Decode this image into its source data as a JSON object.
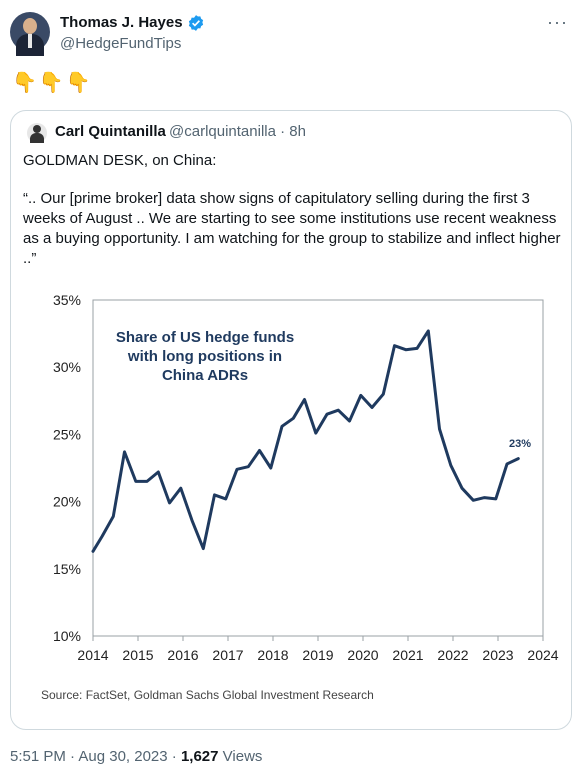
{
  "author": {
    "name": "Thomas J. Hayes",
    "handle": "@HedgeFundTips"
  },
  "tweet_text": "👇👇👇",
  "quoted": {
    "name": "Carl Quintanilla",
    "handle": "@carlquintanilla",
    "time": "· 8h",
    "line1": "GOLDMAN DESK, on China:",
    "line2": "“.. Our [prime broker] data show signs of capitulatory selling during the first 3 weeks of August .. We are starting to see some institutions use recent weakness as a buying opportunity. I am watching for the group to stabilize and inflect higher ..”"
  },
  "chart_data": {
    "type": "line",
    "title": "Share of US hedge funds with long positions in China ADRs",
    "end_label": "23%",
    "source": "Source: FactSet, Goldman Sachs Global Investment Research",
    "xlabel": "",
    "ylabel": "",
    "xlim": [
      2014,
      2024
    ],
    "ylim": [
      10,
      35
    ],
    "x_ticks": [
      "2014",
      "2015",
      "2016",
      "2017",
      "2018",
      "2019",
      "2020",
      "2021",
      "2022",
      "2023",
      "2024"
    ],
    "y_ticks": [
      "10%",
      "15%",
      "20%",
      "25%",
      "30%",
      "35%"
    ],
    "grid": false,
    "line_color": "#1f3a5f",
    "x": [
      2014.0,
      2014.2,
      2014.45,
      2014.7,
      2014.95,
      2015.2,
      2015.45,
      2015.7,
      2015.95,
      2016.2,
      2016.45,
      2016.7,
      2016.95,
      2017.2,
      2017.45,
      2017.7,
      2017.95,
      2018.2,
      2018.45,
      2018.7,
      2018.95,
      2019.2,
      2019.45,
      2019.7,
      2019.95,
      2020.2,
      2020.45,
      2020.7,
      2020.95,
      2021.2,
      2021.45,
      2021.7,
      2021.95,
      2022.2,
      2022.45,
      2022.7,
      2022.95,
      2023.2,
      2023.45
    ],
    "values": [
      16.3,
      17.4,
      18.9,
      23.7,
      21.5,
      21.5,
      22.2,
      19.9,
      21.0,
      18.6,
      16.5,
      20.5,
      20.2,
      22.4,
      22.6,
      23.8,
      22.5,
      25.6,
      26.2,
      27.6,
      25.1,
      26.5,
      26.8,
      26.0,
      27.9,
      27.0,
      28.0,
      31.6,
      31.3,
      31.4,
      32.7,
      25.4,
      22.7,
      21.0,
      20.1,
      20.3,
      20.2,
      22.8,
      23.2
    ]
  },
  "footer": {
    "time": "5:51 PM · Aug 30, 2023 · ",
    "views": "1,627",
    "views_label": " Views"
  }
}
